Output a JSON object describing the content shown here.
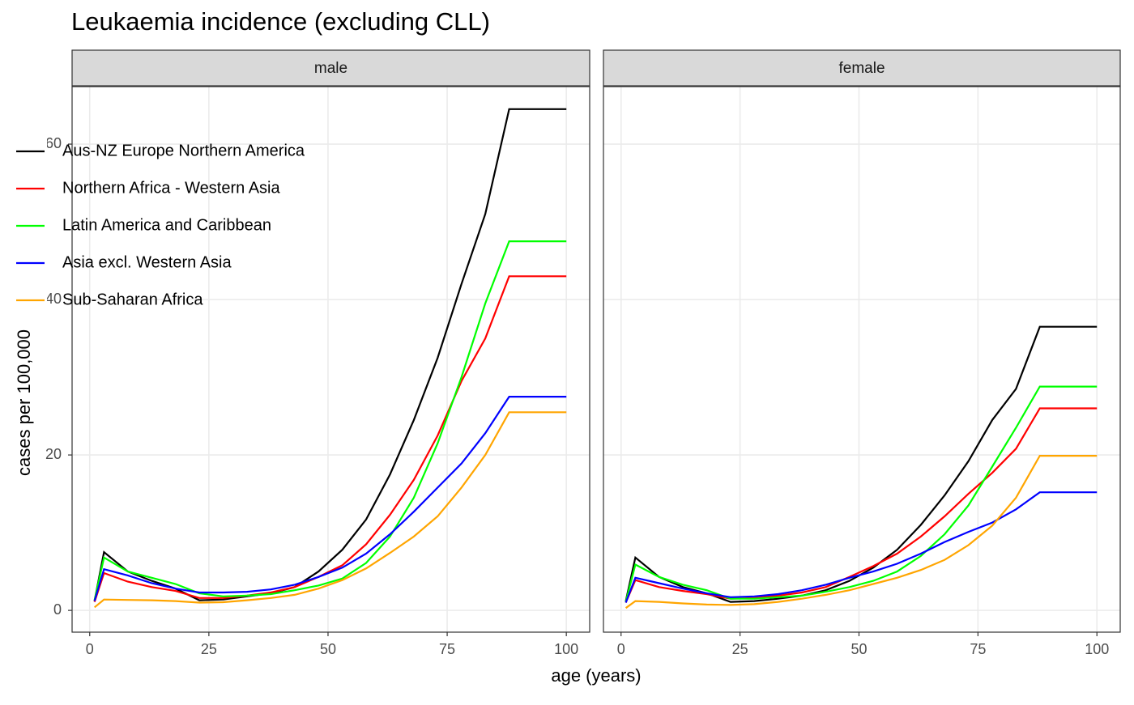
{
  "chart_data": {
    "type": "line",
    "title": "Leukaemia incidence (excluding CLL)",
    "x_label": "age (years)",
    "y_label": "cases per 100,000",
    "x": [
      1,
      3,
      8,
      13,
      18,
      23,
      28,
      33,
      38,
      43,
      48,
      53,
      58,
      63,
      68,
      73,
      78,
      83,
      88,
      100
    ],
    "xlim": [
      -3.7,
      104.9
    ],
    "xticks": [
      0,
      25,
      50,
      75,
      100
    ],
    "ylim": [
      -2.8,
      67.4
    ],
    "yticks": [
      0,
      20,
      40,
      60
    ],
    "grid": true,
    "legend": "top-left",
    "series": [
      {
        "name": "Aus-NZ Europe Northern America",
        "color": "#000000"
      },
      {
        "name": "Northern Africa - Western Asia",
        "color": "#ff0000"
      },
      {
        "name": "Latin America and Caribbean",
        "color": "#00ff00"
      },
      {
        "name": "Asia excl. Western Asia",
        "color": "#0000ff"
      },
      {
        "name": "Sub-Saharan Africa",
        "color": "#ffa500"
      }
    ],
    "facets": [
      {
        "label": "male",
        "values": [
          [
            1.2,
            7.5,
            5.0,
            3.8,
            2.8,
            1.3,
            1.4,
            1.8,
            2.2,
            3.0,
            5.0,
            7.8,
            11.7,
            17.5,
            24.5,
            32.5,
            42,
            51,
            64.5,
            64.5
          ],
          [
            1.1,
            4.8,
            3.7,
            3.0,
            2.5,
            1.6,
            1.6,
            1.9,
            2.3,
            3.0,
            4.3,
            5.8,
            8.5,
            12.3,
            16.8,
            22.5,
            29.5,
            35,
            43,
            43
          ],
          [
            1.3,
            6.8,
            5.0,
            4.2,
            3.4,
            2.2,
            1.8,
            1.9,
            2.1,
            2.6,
            3.2,
            4.1,
            6.1,
            9.5,
            14.5,
            21.5,
            30,
            39.5,
            47.5,
            47.5
          ],
          [
            1.2,
            5.3,
            4.5,
            3.5,
            2.8,
            2.3,
            2.3,
            2.4,
            2.7,
            3.3,
            4.3,
            5.5,
            7.3,
            9.8,
            12.7,
            15.8,
            18.9,
            22.8,
            27.5,
            27.5
          ],
          [
            0.4,
            1.4,
            1.35,
            1.3,
            1.2,
            1.0,
            1.05,
            1.3,
            1.6,
            2.0,
            2.8,
            3.9,
            5.4,
            7.4,
            9.5,
            12.1,
            15.8,
            20,
            25.5,
            25.5
          ]
        ]
      },
      {
        "label": "female",
        "values": [
          [
            1.2,
            6.8,
            4.3,
            3.0,
            2.2,
            1.1,
            1.2,
            1.5,
            1.9,
            2.6,
            3.8,
            5.5,
            7.8,
            11,
            14.8,
            19.2,
            24.5,
            28.5,
            36.5,
            36.5
          ],
          [
            1.0,
            3.9,
            3.0,
            2.5,
            2.1,
            1.5,
            1.6,
            1.9,
            2.3,
            3.0,
            4.3,
            5.7,
            7.3,
            9.5,
            12.1,
            15,
            17.7,
            20.8,
            26,
            26
          ],
          [
            1.1,
            5.9,
            4.3,
            3.3,
            2.6,
            1.5,
            1.5,
            1.7,
            1.9,
            2.4,
            3.0,
            3.8,
            5.0,
            7.0,
            9.8,
            13.5,
            18.5,
            23.5,
            28.8,
            28.8
          ],
          [
            1.0,
            4.2,
            3.5,
            2.8,
            2.2,
            1.7,
            1.8,
            2.1,
            2.6,
            3.3,
            4.2,
            5.0,
            6.0,
            7.3,
            8.8,
            10.1,
            11.3,
            13.0,
            15.2,
            15.2
          ],
          [
            0.3,
            1.2,
            1.1,
            0.9,
            0.75,
            0.7,
            0.8,
            1.1,
            1.5,
            2.0,
            2.6,
            3.4,
            4.2,
            5.2,
            6.5,
            8.4,
            10.9,
            14.5,
            19.9,
            19.9
          ]
        ]
      }
    ]
  }
}
